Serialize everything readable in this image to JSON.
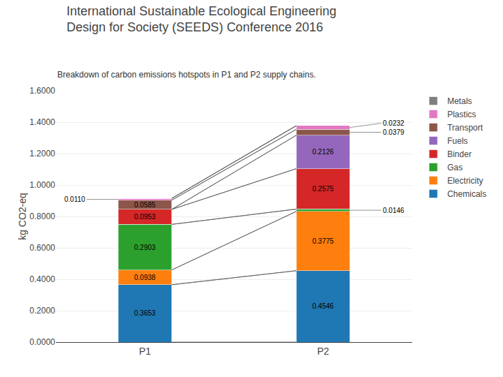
{
  "chart_data": {
    "type": "bar",
    "stacked": true,
    "title": "International Sustainable Ecological Engineering\nDesign for Society (SEEDS) Conference 2016",
    "subtitle": "Breakdown of carbon emissions hotspots in P1 and P2 supply chains.",
    "ylabel": "kg CO2-eq",
    "categories": [
      "P1",
      "P2"
    ],
    "series": [
      {
        "name": "Chemicals",
        "values": [
          0.3653,
          0.4546
        ],
        "value_labels": [
          "0.3653",
          "0.4546"
        ]
      },
      {
        "name": "Electricity",
        "values": [
          0.0938,
          0.3775
        ],
        "value_labels": [
          "0.0938",
          "0.3775"
        ]
      },
      {
        "name": "Gas",
        "values": [
          0.2903,
          0.0146
        ],
        "value_labels": [
          "0.2903",
          "0.0146"
        ]
      },
      {
        "name": "Binder",
        "values": [
          0.0953,
          0.2575
        ],
        "value_labels": [
          "0.0953",
          "0.2575"
        ]
      },
      {
        "name": "Fuels",
        "values": [
          0.0,
          0.2126
        ],
        "value_labels": [
          null,
          "0.2126"
        ]
      },
      {
        "name": "Transport",
        "values": [
          0.0585,
          0.0379
        ],
        "value_labels": [
          "0.0585",
          "0.0379"
        ]
      },
      {
        "name": "Plastics",
        "values": [
          0.011,
          0.0232
        ],
        "value_labels": [
          "0.0110",
          "0.0232"
        ]
      },
      {
        "name": "Metals",
        "values": [
          0.0,
          0.0
        ],
        "value_labels": [
          null,
          null
        ]
      }
    ],
    "ylim": [
      0.0,
      1.6
    ],
    "yticks": [
      {
        "value": 0.0,
        "label": "0.0000"
      },
      {
        "value": 0.2,
        "label": "0.2000"
      },
      {
        "value": 0.4,
        "label": "0.4000"
      },
      {
        "value": 0.6,
        "label": "0.6000"
      },
      {
        "value": 0.8,
        "label": "0.8000"
      },
      {
        "value": 1.0,
        "label": "1.0000"
      },
      {
        "value": 1.2,
        "label": "1.2000"
      },
      {
        "value": 1.4,
        "label": "1.4000"
      },
      {
        "value": 1.6,
        "label": "1.6000"
      }
    ],
    "grid": true,
    "legend": "upper right",
    "data_labels": true
  }
}
